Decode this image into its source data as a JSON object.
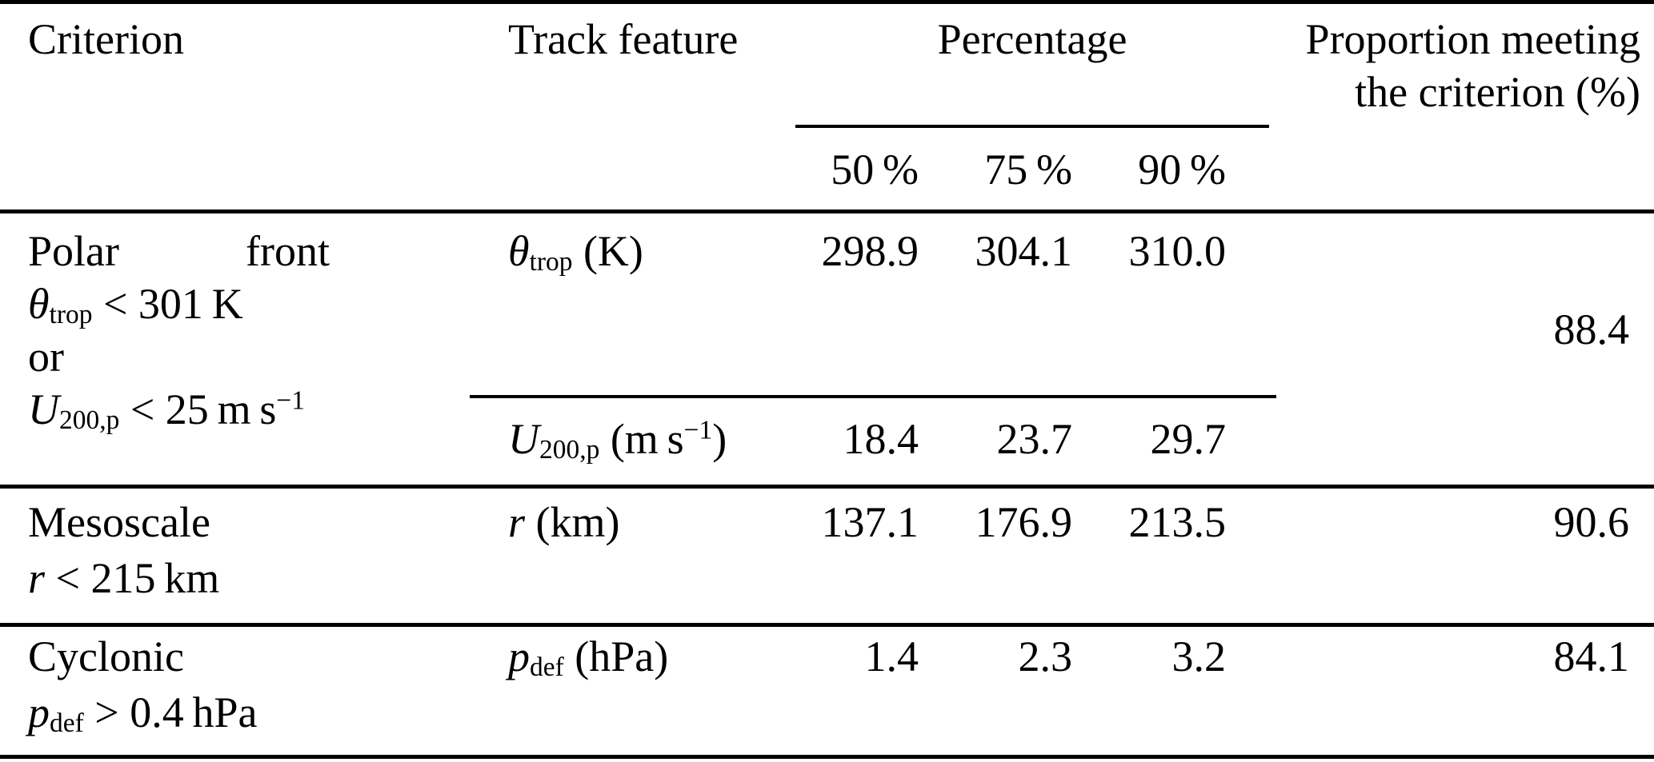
{
  "table": {
    "header": {
      "criterion": "Criterion",
      "track_feature": "Track feature",
      "percentage": "Percentage",
      "percentile_50": "50 %",
      "percentile_75": "75 %",
      "percentile_90": "90 %",
      "proportion_line1": "Proportion meeting",
      "proportion_line2": "the criterion (%)"
    },
    "rows": [
      {
        "criterion": {
          "line1_left": "Polar",
          "line1_right": "front",
          "line2_html": "<i>θ</i><sub>trop</sub> &lt; 301 K",
          "line3": "or",
          "line4_html": "<i>U</i><sub>200,p</sub> &lt; 25 m s<sup>−1</sup>"
        },
        "subrows": [
          {
            "feature_html": "<i>θ</i><sub>trop</sub> (K)",
            "p50": "298.9",
            "p75": "304.1",
            "p90": "310.0"
          },
          {
            "feature_html": "<i>U</i><sub>200,p</sub> (m s<sup>−1</sup>)",
            "p50": "18.4",
            "p75": "23.7",
            "p90": "29.7"
          }
        ],
        "proportion": "88.4"
      },
      {
        "criterion": {
          "line1": "Mesoscale",
          "line2_html": "<i>r</i> &lt; 215 km"
        },
        "subrows": [
          {
            "feature_html": "<i>r</i> (km)",
            "p50": "137.1",
            "p75": "176.9",
            "p90": "213.5"
          }
        ],
        "proportion": "90.6"
      },
      {
        "criterion": {
          "line1": "Cyclonic",
          "line2_html": "<i>p</i><sub>def</sub> &gt; 0.4 hPa"
        },
        "subrows": [
          {
            "feature_html": "<i>p</i><sub>def</sub> (hPa)",
            "p50": "1.4",
            "p75": "2.3",
            "p90": "3.2"
          }
        ],
        "proportion": "84.1"
      }
    ]
  }
}
